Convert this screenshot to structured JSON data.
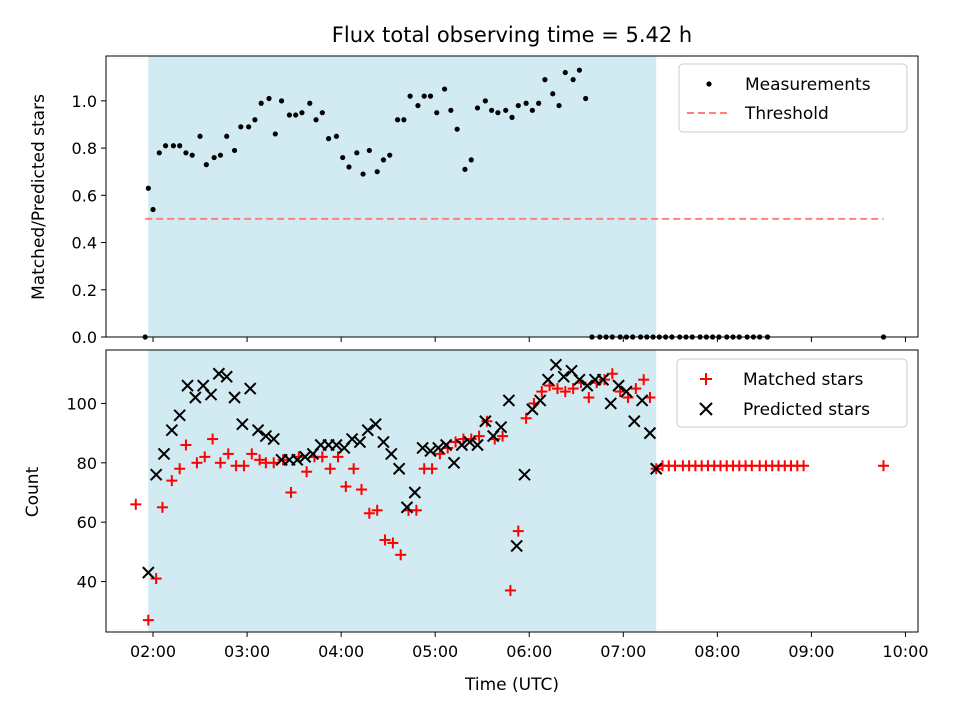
{
  "chart_data": [
    {
      "type": "scatter",
      "title": "Flux total observing time = 5.42 h",
      "xlabel": "",
      "ylabel": "Matched/Predicted stars",
      "xlim": [
        "01:30",
        "10:08"
      ],
      "ylim": [
        0,
        1.19
      ],
      "y_ticks": [
        0.0,
        0.2,
        0.4,
        0.6,
        0.8,
        1.0
      ],
      "y_tick_labels": [
        "0.0",
        "0.2",
        "0.4",
        "0.6",
        "0.8",
        "1.0"
      ],
      "highlight_span": {
        "start": "01:57",
        "end": "07:21",
        "color": "#add8e6"
      },
      "legend": {
        "placement": "upper right",
        "entries": [
          "Measurements",
          "Threshold"
        ]
      },
      "series": [
        {
          "name": "Measurements",
          "marker": "dot",
          "color": "#000000",
          "x": [
            "01:55",
            "01:57",
            "02:00",
            "02:04",
            "02:08",
            "02:13",
            "02:17",
            "02:21",
            "02:25",
            "02:30",
            "02:34",
            "02:39",
            "02:43",
            "02:47",
            "02:52",
            "02:56",
            "03:01",
            "03:05",
            "03:09",
            "03:14",
            "03:18",
            "03:22",
            "03:27",
            "03:31",
            "03:35",
            "03:40",
            "03:44",
            "03:48",
            "03:52",
            "03:57",
            "04:01",
            "04:05",
            "04:10",
            "04:14",
            "04:18",
            "04:23",
            "04:27",
            "04:31",
            "04:36",
            "04:40",
            "04:44",
            "04:49",
            "04:53",
            "04:57",
            "05:01",
            "05:06",
            "05:10",
            "05:14",
            "05:19",
            "05:23",
            "05:27",
            "05:32",
            "05:36",
            "05:40",
            "05:45",
            "05:49",
            "05:53",
            "05:58",
            "06:02",
            "06:06",
            "06:10",
            "06:15",
            "06:19",
            "06:23",
            "06:28",
            "06:32",
            "06:36",
            "06:40",
            "06:45",
            "06:49",
            "06:53",
            "06:58",
            "07:02",
            "07:06",
            "07:11",
            "07:15",
            "07:19",
            "07:23",
            "07:27",
            "07:31",
            "07:36",
            "07:40",
            "07:44",
            "07:49",
            "07:53",
            "07:57",
            "08:01",
            "08:06",
            "08:10",
            "08:14",
            "08:19",
            "08:23",
            "08:27",
            "08:32",
            "09:46"
          ],
          "y": [
            0.0,
            0.63,
            0.54,
            0.78,
            0.81,
            0.81,
            0.81,
            0.78,
            0.77,
            0.85,
            0.73,
            0.76,
            0.77,
            0.85,
            0.79,
            0.89,
            0.89,
            0.92,
            0.99,
            1.01,
            0.86,
            1.0,
            0.94,
            0.94,
            0.95,
            0.99,
            0.92,
            0.95,
            0.84,
            0.85,
            0.76,
            0.72,
            0.78,
            0.69,
            0.79,
            0.7,
            0.75,
            0.77,
            0.92,
            0.92,
            1.02,
            0.98,
            1.02,
            1.02,
            0.95,
            1.05,
            0.96,
            0.88,
            0.71,
            0.75,
            0.97,
            1.0,
            0.96,
            0.95,
            0.96,
            0.93,
            0.98,
            0.99,
            0.96,
            0.99,
            1.09,
            1.03,
            0.98,
            1.12,
            1.09,
            1.13,
            1.01,
            0.0,
            0.0,
            0.0,
            0.0,
            0.0,
            0.0,
            0.0,
            0.0,
            0.0,
            0.0,
            0.0,
            0.0,
            0.0,
            0.0,
            0.0,
            0.0,
            0.0,
            0.0,
            0.0,
            0.0,
            0.0,
            0.0,
            0.0,
            0.0,
            0.0,
            0.0,
            0.0,
            0.0
          ]
        },
        {
          "name": "Threshold",
          "marker": "dashed-line",
          "color": "#ff7f7f",
          "x": [
            "01:55",
            "09:46"
          ],
          "y": [
            0.5,
            0.5
          ]
        }
      ]
    },
    {
      "type": "scatter",
      "title": "",
      "xlabel": "Time (UTC)",
      "ylabel": "Count",
      "xlim": [
        "01:30",
        "10:08"
      ],
      "ylim": [
        23,
        118
      ],
      "y_ticks": [
        40,
        60,
        80,
        100
      ],
      "y_tick_labels": [
        "40",
        "60",
        "80",
        "100"
      ],
      "x_ticks": [
        "02:00",
        "03:00",
        "04:00",
        "05:00",
        "06:00",
        "07:00",
        "08:00",
        "09:00",
        "10:00"
      ],
      "x_tick_labels": [
        "02:00",
        "03:00",
        "04:00",
        "05:00",
        "06:00",
        "07:00",
        "08:00",
        "09:00",
        "10:00"
      ],
      "highlight_span": {
        "start": "01:57",
        "end": "07:21",
        "color": "#add8e6"
      },
      "legend": {
        "placement": "upper right",
        "entries": [
          "Matched stars",
          "Predicted stars"
        ]
      },
      "series": [
        {
          "name": "Matched stars",
          "marker": "plus",
          "color": "#ff0000",
          "x": [
            "01:49",
            "01:57",
            "02:02",
            "02:06",
            "02:12",
            "02:17",
            "02:21",
            "02:28",
            "02:33",
            "02:38",
            "02:43",
            "02:48",
            "02:53",
            "02:58",
            "03:03",
            "03:08",
            "03:12",
            "03:17",
            "03:23",
            "03:28",
            "03:33",
            "03:38",
            "03:43",
            "03:48",
            "03:53",
            "03:58",
            "04:03",
            "04:08",
            "04:13",
            "04:18",
            "04:23",
            "04:28",
            "04:33",
            "04:38",
            "04:43",
            "04:48",
            "04:53",
            "04:58",
            "05:03",
            "05:08",
            "05:13",
            "05:18",
            "05:23",
            "05:28",
            "05:33",
            "05:38",
            "05:43",
            "05:48",
            "05:53",
            "05:58",
            "06:03",
            "06:08",
            "06:13",
            "06:18",
            "06:23",
            "06:28",
            "06:33",
            "06:38",
            "06:43",
            "06:48",
            "06:53",
            "06:58",
            "07:03",
            "07:08",
            "07:13",
            "07:17",
            "07:21",
            "07:25",
            "07:29",
            "07:33",
            "07:38",
            "07:42",
            "07:46",
            "07:50",
            "07:54",
            "07:58",
            "08:02",
            "08:06",
            "08:10",
            "08:14",
            "08:18",
            "08:22",
            "08:27",
            "08:31",
            "08:35",
            "08:39",
            "08:43",
            "08:47",
            "08:51",
            "08:55",
            "09:46"
          ],
          "y": [
            66,
            27,
            41,
            65,
            74,
            78,
            86,
            80,
            82,
            88,
            80,
            83,
            79,
            79,
            83,
            81,
            80,
            80,
            81,
            70,
            82,
            77,
            82,
            82,
            78,
            82,
            72,
            78,
            71,
            63,
            64,
            54,
            53,
            49,
            64,
            64,
            78,
            78,
            83,
            85,
            87,
            88,
            88,
            89,
            94,
            88,
            89,
            37,
            57,
            95,
            100,
            104,
            106,
            105,
            104,
            105,
            107,
            102,
            107,
            108,
            110,
            104,
            102,
            105,
            108,
            102,
            78,
            79,
            79,
            79,
            79,
            79,
            79,
            79,
            79,
            79,
            79,
            79,
            79,
            79,
            79,
            79,
            79,
            79,
            79,
            79,
            79,
            79,
            79,
            79,
            79
          ]
        },
        {
          "name": "Predicted stars",
          "marker": "x",
          "color": "#000000",
          "x": [
            "01:57",
            "02:02",
            "02:07",
            "02:12",
            "02:17",
            "02:22",
            "02:27",
            "02:32",
            "02:37",
            "02:42",
            "02:47",
            "02:52",
            "02:57",
            "03:02",
            "03:07",
            "03:12",
            "03:17",
            "03:22",
            "03:27",
            "03:32",
            "03:37",
            "03:42",
            "03:47",
            "03:52",
            "03:57",
            "04:02",
            "04:07",
            "04:12",
            "04:17",
            "04:22",
            "04:27",
            "04:32",
            "04:37",
            "04:42",
            "04:47",
            "04:52",
            "04:57",
            "05:02",
            "05:07",
            "05:12",
            "05:17",
            "05:22",
            "05:27",
            "05:32",
            "05:37",
            "05:42",
            "05:47",
            "05:52",
            "05:57",
            "06:02",
            "06:07",
            "06:12",
            "06:17",
            "06:22",
            "06:27",
            "06:32",
            "06:37",
            "06:42",
            "06:47",
            "06:52",
            "06:57",
            "07:02",
            "07:07",
            "07:12",
            "07:17",
            "07:21"
          ],
          "y": [
            43,
            76,
            83,
            91,
            96,
            106,
            102,
            106,
            103,
            110,
            109,
            102,
            93,
            105,
            91,
            89,
            88,
            81,
            81,
            81,
            82,
            83,
            86,
            86,
            86,
            85,
            88,
            87,
            91,
            93,
            87,
            83,
            78,
            65,
            70,
            85,
            84,
            85,
            86,
            80,
            86,
            87,
            86,
            94,
            89,
            92,
            101,
            52,
            76,
            98,
            101,
            108,
            113,
            109,
            111,
            108,
            106,
            108,
            108,
            100,
            106,
            104,
            94,
            101,
            90,
            78
          ]
        }
      ]
    }
  ]
}
